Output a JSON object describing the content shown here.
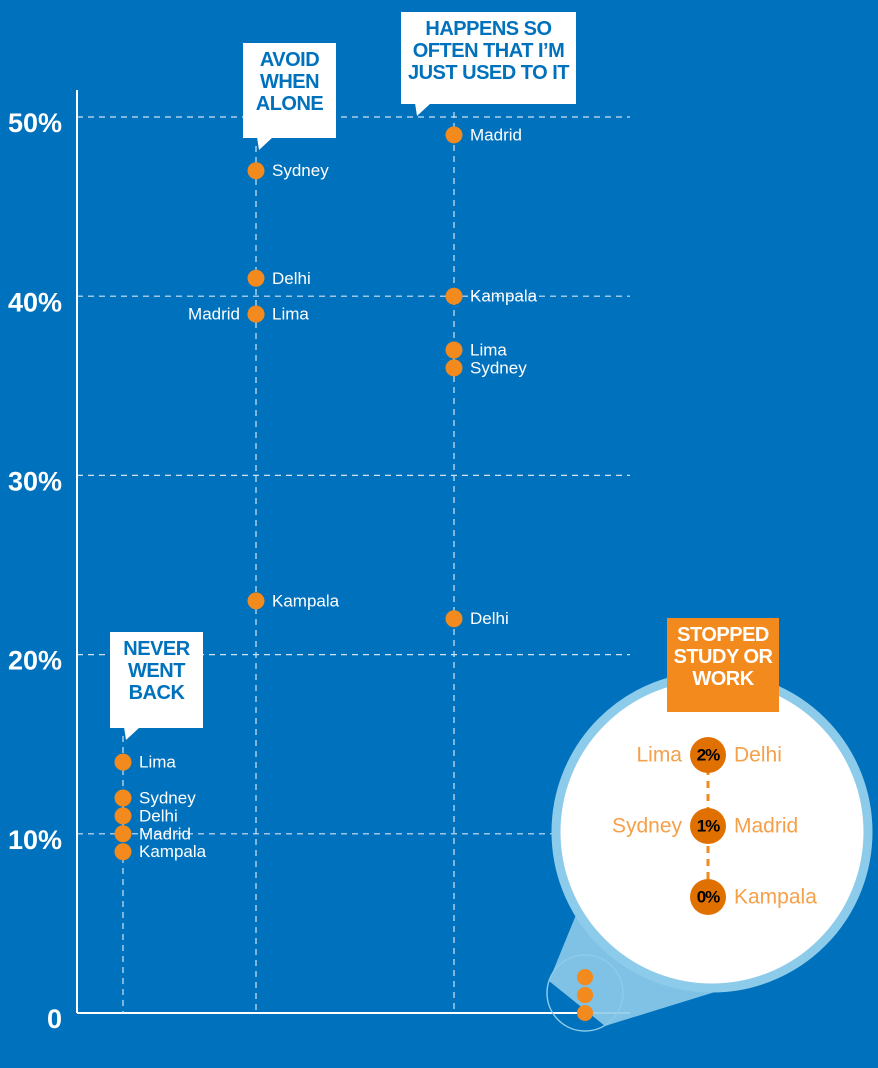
{
  "chart_data": {
    "type": "scatter",
    "categories": [
      "NEVER WENT BACK",
      "AVOID WHEN ALONE",
      "HAPPENS SO OFTEN THAT I’M JUST USED TO IT",
      "STOPPED STUDY OR WORK"
    ],
    "color": "#f28a1e",
    "series": [
      {
        "name": "Lima",
        "values": [
          14,
          39,
          37,
          2
        ],
        "value_labels": [
          null,
          null,
          null,
          "2%"
        ]
      },
      {
        "name": "Sydney",
        "values": [
          12,
          47,
          36,
          1
        ],
        "value_labels": [
          null,
          null,
          null,
          "1%"
        ]
      },
      {
        "name": "Delhi",
        "values": [
          11,
          41,
          22,
          2
        ]
      },
      {
        "name": "Madrid",
        "values": [
          10,
          39,
          49,
          1
        ]
      },
      {
        "name": "Kampala",
        "values": [
          9,
          23,
          40,
          0
        ],
        "value_labels": [
          null,
          null,
          null,
          "0%"
        ]
      }
    ],
    "ylim": [
      0,
      50
    ],
    "yticks": [
      0,
      {
        "value": 10,
        "label": "10%"
      },
      {
        "value": 20,
        "label": "20%"
      },
      {
        "value": 30,
        "label": "30%"
      },
      {
        "value": 40,
        "label": "40%"
      },
      {
        "value": 50,
        "label": "50%"
      }
    ],
    "grid": true
  }
}
